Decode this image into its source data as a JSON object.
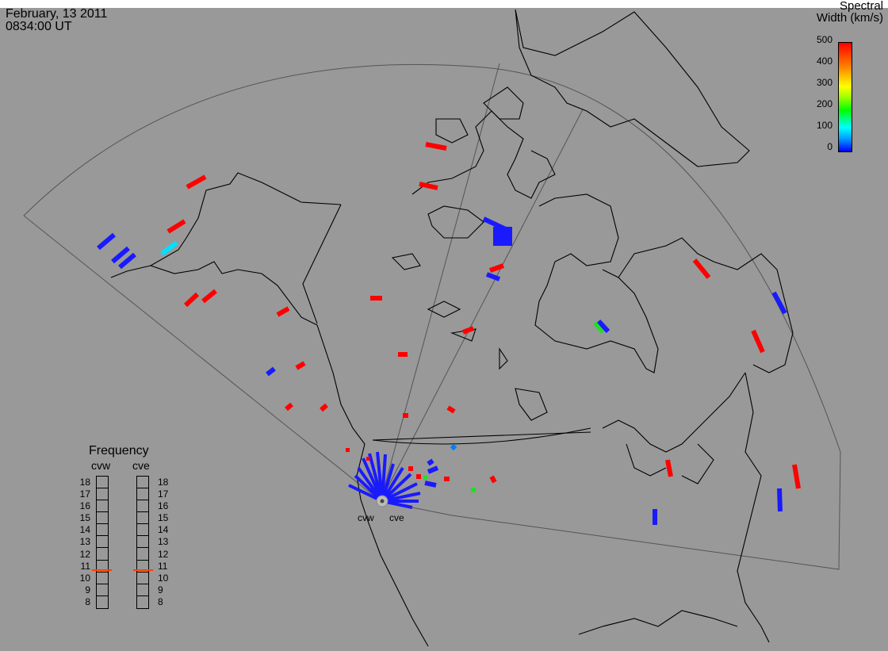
{
  "header": {
    "date": "February, 13 2011",
    "time": "0834:00 UT"
  },
  "colorbar": {
    "title_line1": "Spectral",
    "title_line2": "Width (km/s)",
    "ticks": [
      "500",
      "400",
      "300",
      "200",
      "100",
      "0"
    ],
    "range": [
      0,
      500
    ],
    "colors": [
      "#0000ff",
      "#00ffff",
      "#00ff00",
      "#ffff00",
      "#ff8000",
      "#ff0000"
    ]
  },
  "frequency_panel": {
    "title": "Frequency",
    "radars": [
      {
        "name": "cvw",
        "value_mhz": 10.7
      },
      {
        "name": "cve",
        "value_mhz": 10.7
      }
    ],
    "ticks": [
      "18",
      "17",
      "16",
      "15",
      "14",
      "13",
      "12",
      "11",
      "10",
      "9",
      "8"
    ],
    "range": [
      8,
      18
    ],
    "marker_color": "#ff4000"
  },
  "sites": [
    "cvw",
    "cve"
  ],
  "map": {
    "background": "#999999",
    "coast_color": "#000000",
    "fov_color": "#555555",
    "scatter_colors": {
      "low": "#1a1aff",
      "cyan": "#00e0ff",
      "green": "#20e020",
      "high": "#ff0000"
    }
  }
}
